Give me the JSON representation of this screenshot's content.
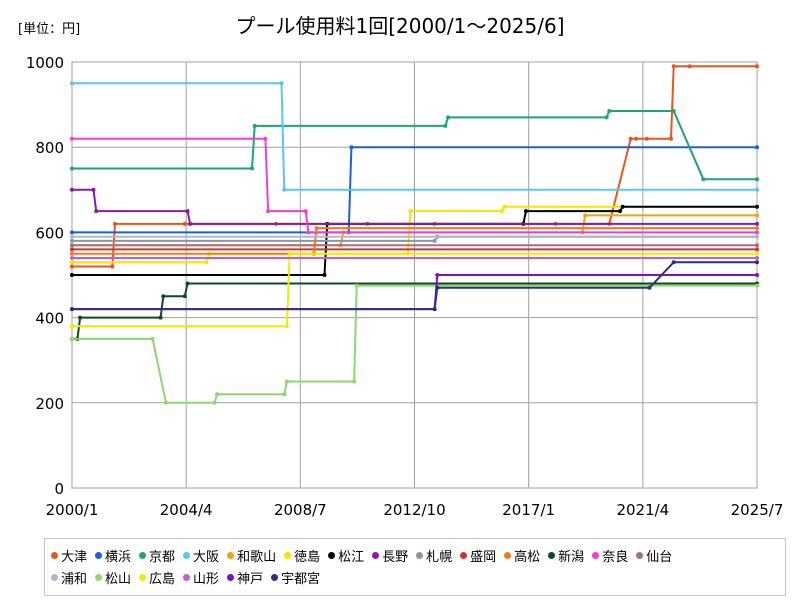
{
  "unit_label": "[単位：円]",
  "chart_data": {
    "type": "line",
    "title": "プール使用料1回[2000/1～2025/6]",
    "xlabel": "",
    "ylabel": "",
    "xlim": [
      2000.0,
      2025.5
    ],
    "ylim": [
      0,
      1000
    ],
    "yticks": [
      0,
      200,
      400,
      600,
      800,
      1000
    ],
    "xticks": [
      {
        "label": "2000/1",
        "value": 2000.0
      },
      {
        "label": "2004/4",
        "value": 2004.25
      },
      {
        "label": "2008/7",
        "value": 2008.5
      },
      {
        "label": "2012/10",
        "value": 2012.75
      },
      {
        "label": "2017/1",
        "value": 2017.0
      },
      {
        "label": "2021/4",
        "value": 2021.25
      },
      {
        "label": "2025/7",
        "value": 2025.5
      }
    ],
    "grid": true,
    "legend_position": "bottom",
    "series": [
      {
        "name": "大津",
        "color": "#e8561f",
        "points": [
          [
            2000,
            520
          ],
          [
            2001.5,
            520
          ],
          [
            2001.6,
            620
          ],
          [
            2004.2,
            620
          ],
          [
            2007.6,
            620
          ],
          [
            2011,
            620
          ],
          [
            2013.5,
            620
          ],
          [
            2018,
            620
          ],
          [
            2020,
            620
          ],
          [
            2020.8,
            820
          ],
          [
            2021,
            820
          ],
          [
            2021.4,
            820
          ],
          [
            2022.3,
            820
          ],
          [
            2022.4,
            990
          ],
          [
            2023,
            990
          ],
          [
            2025.5,
            990
          ]
        ]
      },
      {
        "name": "横浜",
        "color": "#1f5fd6",
        "points": [
          [
            2000,
            600
          ],
          [
            2010.3,
            600
          ],
          [
            2010.4,
            800
          ],
          [
            2025.5,
            800
          ]
        ]
      },
      {
        "name": "京都",
        "color": "#1fa37a",
        "points": [
          [
            2000,
            750
          ],
          [
            2006.7,
            750
          ],
          [
            2006.8,
            850
          ],
          [
            2013.9,
            850
          ],
          [
            2014,
            870
          ],
          [
            2019.9,
            870
          ],
          [
            2020,
            885
          ],
          [
            2022.4,
            885
          ],
          [
            2023.5,
            725
          ],
          [
            2025.5,
            725
          ]
        ]
      },
      {
        "name": "大阪",
        "color": "#5bc4f0",
        "points": [
          [
            2000,
            950
          ],
          [
            2007.8,
            950
          ],
          [
            2007.9,
            700
          ],
          [
            2025.5,
            700
          ]
        ]
      },
      {
        "name": "和歌山",
        "color": "#f0a400",
        "points": [
          [
            2000,
            570
          ],
          [
            2010,
            570
          ],
          [
            2010.1,
            600
          ],
          [
            2019,
            600
          ],
          [
            2019.1,
            640
          ],
          [
            2025.5,
            640
          ]
        ]
      },
      {
        "name": "徳島",
        "color": "#ffe000",
        "points": [
          [
            2000,
            530
          ],
          [
            2005,
            530
          ],
          [
            2005.1,
            550
          ],
          [
            2012.5,
            550
          ],
          [
            2012.6,
            650
          ],
          [
            2016,
            650
          ],
          [
            2016.1,
            660
          ],
          [
            2025.5,
            660
          ]
        ]
      },
      {
        "name": "松江",
        "color": "#000000",
        "points": [
          [
            2000,
            500
          ],
          [
            2009.4,
            500
          ],
          [
            2009.5,
            620
          ],
          [
            2016.8,
            620
          ],
          [
            2016.9,
            650
          ],
          [
            2020.4,
            650
          ],
          [
            2020.5,
            660
          ],
          [
            2025.5,
            660
          ]
        ]
      },
      {
        "name": "長野",
        "color": "#8a1aa8",
        "points": [
          [
            2000,
            700
          ],
          [
            2000.8,
            700
          ],
          [
            2000.9,
            650
          ],
          [
            2004.3,
            650
          ],
          [
            2004.4,
            620
          ],
          [
            2025.5,
            620
          ]
        ]
      },
      {
        "name": "札幌",
        "color": "#8c96a0",
        "points": [
          [
            2000,
            580
          ],
          [
            2013.5,
            580
          ],
          [
            2013.6,
            590
          ],
          [
            2025.5,
            590
          ]
        ]
      },
      {
        "name": "盛岡",
        "color": "#d63030",
        "points": [
          [
            2000,
            560
          ],
          [
            2025.5,
            560
          ]
        ]
      },
      {
        "name": "高松",
        "color": "#f07a20",
        "points": [
          [
            2000,
            550
          ],
          [
            2009,
            550
          ],
          [
            2009.1,
            610
          ],
          [
            2025.5,
            610
          ]
        ]
      },
      {
        "name": "新潟",
        "color": "#0d4a22",
        "points": [
          [
            2000,
            350
          ],
          [
            2000.2,
            350
          ],
          [
            2000.3,
            400
          ],
          [
            2003.3,
            400
          ],
          [
            2003.4,
            450
          ],
          [
            2004.2,
            450
          ],
          [
            2004.3,
            480
          ],
          [
            2025.5,
            480
          ]
        ]
      },
      {
        "name": "奈良",
        "color": "#f040d0",
        "points": [
          [
            2000,
            820
          ],
          [
            2007.2,
            820
          ],
          [
            2007.3,
            650
          ],
          [
            2008.7,
            650
          ],
          [
            2008.8,
            600
          ],
          [
            2025.5,
            600
          ]
        ]
      },
      {
        "name": "仙台",
        "color": "#a07090",
        "points": [
          [
            2000,
            570
          ],
          [
            2025.5,
            570
          ]
        ]
      },
      {
        "name": "浦和",
        "color": "#b0b8c8",
        "points": [
          [
            2000,
            590
          ],
          [
            2025.5,
            590
          ]
        ]
      },
      {
        "name": "松山",
        "color": "#8ed870",
        "points": [
          [
            2000,
            350
          ],
          [
            2003,
            350
          ],
          [
            2003.5,
            200
          ],
          [
            2005.3,
            200
          ],
          [
            2005.4,
            220
          ],
          [
            2007.9,
            220
          ],
          [
            2008,
            250
          ],
          [
            2010.5,
            250
          ],
          [
            2010.6,
            475
          ],
          [
            2025.5,
            475
          ]
        ]
      },
      {
        "name": "広島",
        "color": "#e8f000",
        "points": [
          [
            2000,
            380
          ],
          [
            2008,
            380
          ],
          [
            2008.1,
            550
          ],
          [
            2025.5,
            550
          ]
        ]
      },
      {
        "name": "山形",
        "color": "#c060d0",
        "points": [
          [
            2000,
            540
          ],
          [
            2025.5,
            540
          ]
        ]
      },
      {
        "name": "神戸",
        "color": "#7a10d0",
        "points": [
          [
            2000,
            420
          ],
          [
            2013.5,
            420
          ],
          [
            2013.6,
            500
          ],
          [
            2025.5,
            500
          ]
        ]
      },
      {
        "name": "宇都宮",
        "color": "#30307a",
        "points": [
          [
            2000,
            420
          ],
          [
            2013.5,
            420
          ],
          [
            2013.6,
            470
          ],
          [
            2021.5,
            470
          ],
          [
            2022.4,
            530
          ],
          [
            2025.5,
            530
          ]
        ]
      }
    ]
  }
}
